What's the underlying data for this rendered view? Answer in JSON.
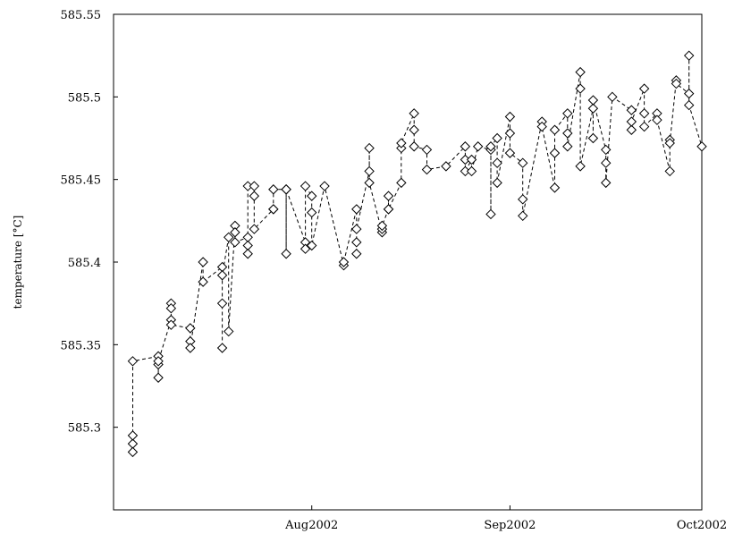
{
  "chart_data": {
    "type": "scatter",
    "title": "",
    "xlabel": "",
    "ylabel": "temperature [°C]",
    "line_style": "dashed",
    "marker": "diamond",
    "grid": false,
    "legend": "none",
    "xlim": [
      "2002-07-01",
      "2002-10-01"
    ],
    "ylim": [
      585.25,
      585.55
    ],
    "x_ticks": [
      "2002-08-01",
      "2002-09-01",
      "2002-10-01"
    ],
    "x_tick_labels": [
      "Aug2002",
      "Sep2002",
      "Oct2002"
    ],
    "y_ticks": [
      585.3,
      585.35,
      585.4,
      585.45,
      585.5,
      585.55
    ],
    "y_tick_labels": [
      "585.3",
      "585.35",
      "585.4",
      "585.45",
      "585.5",
      "585.55"
    ],
    "series": [
      {
        "x": [
          "2002-07-04",
          "2002-07-04",
          "2002-07-04",
          "2002-07-04",
          "2002-07-08",
          "2002-07-08",
          "2002-07-08",
          "2002-07-08",
          "2002-07-10",
          "2002-07-10",
          "2002-07-10",
          "2002-07-10",
          "2002-07-13",
          "2002-07-13",
          "2002-07-13",
          "2002-07-15",
          "2002-07-15",
          "2002-07-18",
          "2002-07-18",
          "2002-07-18",
          "2002-07-18",
          "2002-07-19",
          "2002-07-19",
          "2002-07-20",
          "2002-07-20",
          "2002-07-20",
          "2002-07-22",
          "2002-07-22",
          "2002-07-22",
          "2002-07-22",
          "2002-07-23",
          "2002-07-23",
          "2002-07-23",
          "2002-07-26",
          "2002-07-26",
          "2002-07-26",
          "2002-07-28",
          "2002-07-28",
          "2002-07-28",
          "2002-07-31",
          "2002-07-31",
          "2002-07-31",
          "2002-08-01",
          "2002-08-01",
          "2002-08-01",
          "2002-08-03",
          "2002-08-06",
          "2002-08-06",
          "2002-08-08",
          "2002-08-08",
          "2002-08-08",
          "2002-08-08",
          "2002-08-10",
          "2002-08-10",
          "2002-08-10",
          "2002-08-12",
          "2002-08-12",
          "2002-08-12",
          "2002-08-13",
          "2002-08-13",
          "2002-08-13",
          "2002-08-15",
          "2002-08-15",
          "2002-08-15",
          "2002-08-17",
          "2002-08-17",
          "2002-08-17",
          "2002-08-19",
          "2002-08-19",
          "2002-08-22",
          "2002-08-25",
          "2002-08-25",
          "2002-08-25",
          "2002-08-26",
          "2002-08-26",
          "2002-08-27",
          "2002-08-29",
          "2002-08-29",
          "2002-08-29",
          "2002-08-30",
          "2002-08-30",
          "2002-08-30",
          "2002-09-01",
          "2002-09-01",
          "2002-09-01",
          "2002-09-03",
          "2002-09-03",
          "2002-09-03",
          "2002-09-06",
          "2002-09-06",
          "2002-09-08",
          "2002-09-08",
          "2002-09-08",
          "2002-09-10",
          "2002-09-10",
          "2002-09-10",
          "2002-09-12",
          "2002-09-12",
          "2002-09-12",
          "2002-09-14",
          "2002-09-14",
          "2002-09-14",
          "2002-09-16",
          "2002-09-16",
          "2002-09-16",
          "2002-09-17",
          "2002-09-20",
          "2002-09-20",
          "2002-09-20",
          "2002-09-22",
          "2002-09-22",
          "2002-09-22",
          "2002-09-24",
          "2002-09-24",
          "2002-09-26",
          "2002-09-26",
          "2002-09-26",
          "2002-09-27",
          "2002-09-27",
          "2002-09-29",
          "2002-09-29",
          "2002-09-29",
          "2002-10-01"
        ],
        "y": [
          585.29,
          585.295,
          585.285,
          585.34,
          585.343,
          585.338,
          585.33,
          585.34,
          585.365,
          585.375,
          585.372,
          585.362,
          585.36,
          585.352,
          585.348,
          585.4,
          585.388,
          585.397,
          585.375,
          585.348,
          585.392,
          585.415,
          585.358,
          585.422,
          585.418,
          585.412,
          585.415,
          585.41,
          585.405,
          585.446,
          585.446,
          585.44,
          585.42,
          585.432,
          585.432,
          585.444,
          585.444,
          585.405,
          585.444,
          585.412,
          585.408,
          585.446,
          585.44,
          585.43,
          585.41,
          585.446,
          585.398,
          585.4,
          585.432,
          585.412,
          585.405,
          585.42,
          585.455,
          585.469,
          585.448,
          585.418,
          585.42,
          585.422,
          585.432,
          585.44,
          585.432,
          585.448,
          585.469,
          585.472,
          585.49,
          585.48,
          585.47,
          585.468,
          585.456,
          585.458,
          585.47,
          585.462,
          585.455,
          585.462,
          585.455,
          585.47,
          585.468,
          585.429,
          585.47,
          585.475,
          585.46,
          585.448,
          585.488,
          585.478,
          585.466,
          585.46,
          585.438,
          585.428,
          585.485,
          585.482,
          585.445,
          585.466,
          585.48,
          585.49,
          585.478,
          585.47,
          585.515,
          585.505,
          585.458,
          585.493,
          585.475,
          585.498,
          585.468,
          585.46,
          585.448,
          585.5,
          585.492,
          585.48,
          585.485,
          585.505,
          585.49,
          585.482,
          585.49,
          585.486,
          585.455,
          585.474,
          585.472,
          585.51,
          585.508,
          585.502,
          585.525,
          585.495,
          585.47
        ]
      }
    ]
  }
}
